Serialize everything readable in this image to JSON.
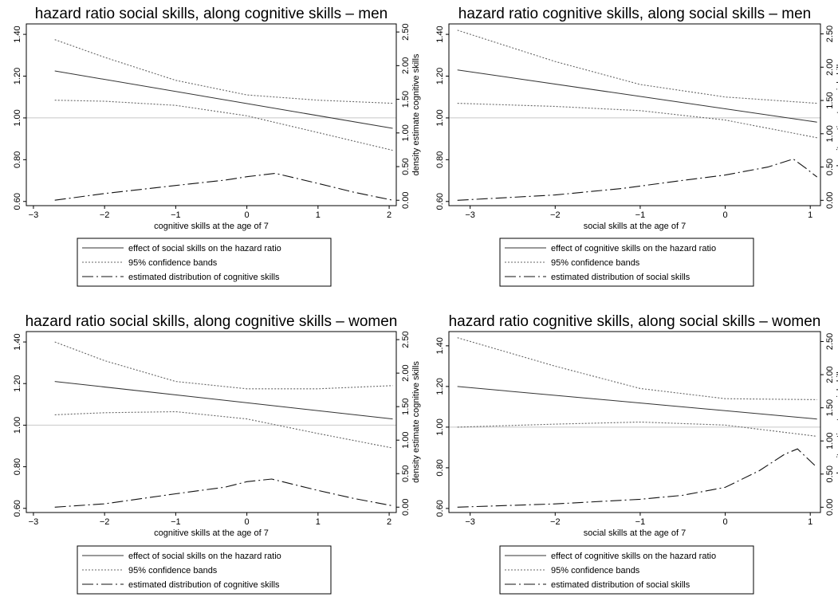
{
  "chart_data": [
    {
      "type": "line",
      "title": "hazard ratio social skills, along cognitive skills – men",
      "xlabel": "cognitive skills at the age of 7",
      "ylabel": "",
      "y2label": "density estimate cognitive skills",
      "xlim": [
        -3.1,
        2.1
      ],
      "ylim": [
        0.58,
        1.45
      ],
      "y2lim": [
        -0.08,
        2.62
      ],
      "xticks": [
        -3,
        -2,
        -1,
        0,
        1,
        2
      ],
      "yticks": [
        0.6,
        0.8,
        1.0,
        1.2,
        1.4
      ],
      "y2ticks": [
        0.0,
        0.5,
        1.0,
        1.5,
        2.0,
        2.5
      ],
      "xtick_labels": [
        "−3",
        "−2",
        "−1",
        "0",
        "1",
        "2"
      ],
      "ytick_labels": [
        "0.60",
        "0.80",
        "1.00",
        "1.20",
        "1.40"
      ],
      "y2tick_labels": [
        "0.00",
        "0.50",
        "1.00",
        "1.50",
        "2.00",
        "2.50"
      ],
      "reference_line": 1.0,
      "grid": false,
      "legend_position": "bottom",
      "series": [
        {
          "name": "effect of social skills on the hazard ratio",
          "style": "solid",
          "axis": "left",
          "x": [
            -2.7,
            2.05
          ],
          "y": [
            1.225,
            0.95
          ]
        },
        {
          "name": "95% confidence bands",
          "style": "dotted",
          "axis": "left",
          "x": [
            -2.7,
            -2,
            -1,
            0,
            1,
            2.05
          ],
          "y": [
            1.375,
            1.29,
            1.18,
            1.11,
            1.085,
            1.07
          ]
        },
        {
          "name": "",
          "style": "dotted",
          "axis": "left",
          "x": [
            -2.7,
            -2,
            -1,
            0,
            1,
            2.05
          ],
          "y": [
            1.085,
            1.08,
            1.06,
            1.01,
            0.93,
            0.845
          ]
        },
        {
          "name": "estimated distribution of cognitive skills",
          "style": "dashdot",
          "axis": "right",
          "x": [
            -2.7,
            -2,
            -1,
            -0.3,
            0,
            0.4,
            1,
            1.5,
            2.05
          ],
          "y": [
            0.0,
            0.1,
            0.22,
            0.3,
            0.35,
            0.4,
            0.25,
            0.12,
            0.0
          ]
        }
      ]
    },
    {
      "type": "line",
      "title": "hazard ratio cognitive skills, along social skills – men",
      "xlabel": "social skills at the age of 7",
      "ylabel": "",
      "y2label": "density estimate social skills",
      "xlim": [
        -3.25,
        1.12
      ],
      "ylim": [
        0.58,
        1.45
      ],
      "y2lim": [
        -0.08,
        2.65
      ],
      "xticks": [
        -3,
        -2,
        -1,
        0,
        1
      ],
      "yticks": [
        0.6,
        0.8,
        1.0,
        1.2,
        1.4
      ],
      "y2ticks": [
        0.0,
        0.5,
        1.0,
        1.5,
        2.0,
        2.5
      ],
      "xtick_labels": [
        "−3",
        "−2",
        "−1",
        "0",
        "1"
      ],
      "ytick_labels": [
        "0.60",
        "0.80",
        "1.00",
        "1.20",
        "1.40"
      ],
      "y2tick_labels": [
        "0.00",
        "0.50",
        "1.00",
        "1.50",
        "2.00",
        "2.50"
      ],
      "reference_line": 1.0,
      "grid": false,
      "legend_position": "bottom",
      "series": [
        {
          "name": "effect of cognitive skills on the hazard ratio",
          "style": "solid",
          "axis": "left",
          "x": [
            -3.15,
            1.08
          ],
          "y": [
            1.23,
            0.98
          ]
        },
        {
          "name": "95% confidence bands",
          "style": "dotted",
          "axis": "left",
          "x": [
            -3.15,
            -2,
            -1,
            0,
            1.08
          ],
          "y": [
            1.42,
            1.27,
            1.16,
            1.1,
            1.07
          ]
        },
        {
          "name": "",
          "style": "dotted",
          "axis": "left",
          "x": [
            -3.15,
            -2,
            -1,
            0,
            1.08
          ],
          "y": [
            1.07,
            1.055,
            1.035,
            0.99,
            0.905
          ]
        },
        {
          "name": "estimated distribution of social skills",
          "style": "dashdot",
          "axis": "right",
          "x": [
            -3.15,
            -2,
            -1.2,
            -0.5,
            0,
            0.5,
            0.8,
            0.95,
            1.08
          ],
          "y": [
            0.0,
            0.08,
            0.18,
            0.3,
            0.38,
            0.5,
            0.62,
            0.48,
            0.35
          ]
        }
      ]
    },
    {
      "type": "line",
      "title": "hazard ratio social skills, along cognitive skills – women",
      "xlabel": "cognitive skills at the age of 7",
      "ylabel": "",
      "y2label": "density estimate cognitive skills",
      "xlim": [
        -3.1,
        2.1
      ],
      "ylim": [
        0.58,
        1.45
      ],
      "y2lim": [
        -0.08,
        2.62
      ],
      "xticks": [
        -3,
        -2,
        -1,
        0,
        1,
        2
      ],
      "yticks": [
        0.6,
        0.8,
        1.0,
        1.2,
        1.4
      ],
      "y2ticks": [
        0.0,
        0.5,
        1.0,
        1.5,
        2.0,
        2.5
      ],
      "xtick_labels": [
        "−3",
        "−2",
        "−1",
        "0",
        "1",
        "2"
      ],
      "ytick_labels": [
        "0.60",
        "0.80",
        "1.00",
        "1.20",
        "1.40"
      ],
      "y2tick_labels": [
        "0.00",
        "0.50",
        "1.00",
        "1.50",
        "2.00",
        "2.50"
      ],
      "reference_line": 1.0,
      "grid": false,
      "legend_position": "bottom",
      "series": [
        {
          "name": "effect of social skills on the hazard ratio",
          "style": "solid",
          "axis": "left",
          "x": [
            -2.7,
            2.05
          ],
          "y": [
            1.21,
            1.03
          ]
        },
        {
          "name": "95% confidence bands",
          "style": "dotted",
          "axis": "left",
          "x": [
            -2.7,
            -2,
            -1,
            0,
            1,
            2.05
          ],
          "y": [
            1.4,
            1.31,
            1.21,
            1.175,
            1.175,
            1.19
          ]
        },
        {
          "name": "",
          "style": "dotted",
          "axis": "left",
          "x": [
            -2.7,
            -2,
            -1,
            0,
            1,
            2.05
          ],
          "y": [
            1.05,
            1.06,
            1.065,
            1.03,
            0.96,
            0.89
          ]
        },
        {
          "name": "estimated distribution of cognitive skills",
          "style": "dashdot",
          "axis": "right",
          "x": [
            -2.7,
            -2,
            -1,
            -0.3,
            0,
            0.35,
            1,
            1.5,
            2.05
          ],
          "y": [
            0.0,
            0.05,
            0.2,
            0.3,
            0.38,
            0.42,
            0.25,
            0.13,
            0.02
          ]
        }
      ]
    },
    {
      "type": "line",
      "title": "hazard ratio cognitive skills, along social skills – women",
      "xlabel": "social skills at the age of 7",
      "ylabel": "",
      "y2label": "density estimate social skills",
      "xlim": [
        -3.25,
        1.12
      ],
      "ylim": [
        0.58,
        1.47
      ],
      "y2lim": [
        -0.08,
        2.65
      ],
      "xticks": [
        -3,
        -2,
        -1,
        0,
        1
      ],
      "yticks": [
        0.6,
        0.8,
        1.0,
        1.2,
        1.4
      ],
      "y2ticks": [
        0.0,
        0.5,
        1.0,
        1.5,
        2.0,
        2.5
      ],
      "xtick_labels": [
        "−3",
        "−2",
        "−1",
        "0",
        "1"
      ],
      "ytick_labels": [
        "0.60",
        "0.80",
        "1.00",
        "1.20",
        "1.40"
      ],
      "y2tick_labels": [
        "0.00",
        "0.50",
        "1.00",
        "1.50",
        "2.00",
        "2.50"
      ],
      "reference_line": 1.0,
      "grid": false,
      "legend_position": "bottom",
      "series": [
        {
          "name": "effect of cognitive skills on the hazard ratio",
          "style": "solid",
          "axis": "left",
          "x": [
            -3.15,
            1.08
          ],
          "y": [
            1.2,
            1.04
          ]
        },
        {
          "name": "95% confidence bands",
          "style": "dotted",
          "axis": "left",
          "x": [
            -3.15,
            -2,
            -1,
            0,
            1.08
          ],
          "y": [
            1.44,
            1.3,
            1.19,
            1.14,
            1.135
          ]
        },
        {
          "name": "",
          "style": "dotted",
          "axis": "left",
          "x": [
            -3.15,
            -2,
            -1,
            0,
            1.08
          ],
          "y": [
            1.0,
            1.015,
            1.025,
            1.01,
            0.955
          ]
        },
        {
          "name": "estimated distribution of social skills",
          "style": "dashdot",
          "axis": "right",
          "x": [
            -3.15,
            -2,
            -1,
            -0.5,
            0,
            0.4,
            0.7,
            0.85,
            1.08
          ],
          "y": [
            0.0,
            0.05,
            0.12,
            0.18,
            0.3,
            0.55,
            0.8,
            0.88,
            0.6
          ]
        }
      ]
    }
  ]
}
